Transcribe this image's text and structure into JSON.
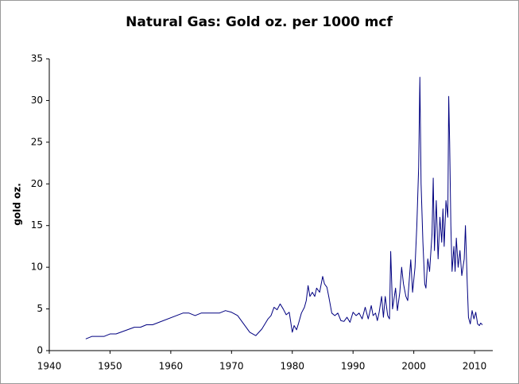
{
  "chart_data": {
    "type": "line",
    "title": "Natural Gas: Gold oz. per 1000 mcf",
    "ylabel": "gold oz.",
    "color": "#000080",
    "x": [
      1946,
      1947,
      1949,
      1950,
      1951,
      1954,
      1955,
      1956,
      1957,
      1962,
      1963,
      1964,
      1965,
      1968,
      1969,
      1970,
      1971,
      1972,
      1973,
      1974,
      1975,
      1976,
      1976.5,
      1977,
      1977.5,
      1978,
      1978.5,
      1979,
      1979.5,
      1980,
      1980.3,
      1980.7,
      1981,
      1981.5,
      1982,
      1982.3,
      1982.6,
      1982.9,
      1983.3,
      1983.7,
      1984,
      1984.5,
      1985,
      1985.3,
      1985.7,
      1986,
      1986.5,
      1987,
      1987.5,
      1988,
      1988.5,
      1989,
      1989.5,
      1990,
      1990.5,
      1991,
      1991.5,
      1992,
      1992.5,
      1993,
      1993.3,
      1993.7,
      1994,
      1994.3,
      1994.7,
      1995,
      1995.3,
      1995.7,
      1996,
      1996.2,
      1996.5,
      1997,
      1997.3,
      1997.7,
      1998,
      1998.3,
      1998.7,
      1999,
      1999.5,
      1999.8,
      2000.2,
      2000.5,
      2000.8,
      2001,
      2001.2,
      2001.5,
      2001.8,
      2002,
      2002.3,
      2002.6,
      2003,
      2003.2,
      2003.4,
      2003.7,
      2004,
      2004.3,
      2004.6,
      2004.8,
      2005,
      2005.3,
      2005.6,
      2005.75,
      2005.9,
      2006.1,
      2006.3,
      2006.6,
      2006.8,
      2007,
      2007.3,
      2007.6,
      2007.9,
      2008.3,
      2008.5,
      2008.8,
      2009,
      2009.3,
      2009.6,
      2009.9,
      2010.2,
      2010.5,
      2010.8,
      2011,
      2011.3
    ],
    "values": [
      1.4,
      1.7,
      1.7,
      2.0,
      2.0,
      2.8,
      2.8,
      3.1,
      3.1,
      4.5,
      4.5,
      4.2,
      4.5,
      4.5,
      4.8,
      4.6,
      4.2,
      3.2,
      2.2,
      1.8,
      2.6,
      3.8,
      4.2,
      5.2,
      4.9,
      5.6,
      5.0,
      4.3,
      4.6,
      2.2,
      3.0,
      2.5,
      3.2,
      4.5,
      5.2,
      6.0,
      7.8,
      6.5,
      7.0,
      6.5,
      7.5,
      7.0,
      8.9,
      8.0,
      7.6,
      6.5,
      4.5,
      4.2,
      4.5,
      3.6,
      3.5,
      4.0,
      3.4,
      4.6,
      4.2,
      4.5,
      3.8,
      5.2,
      3.8,
      5.4,
      4.2,
      4.5,
      3.6,
      4.6,
      6.5,
      4.0,
      6.5,
      4.2,
      3.8,
      11.9,
      5.0,
      7.5,
      4.8,
      7.0,
      10.0,
      8.0,
      6.5,
      6.0,
      10.9,
      7.0,
      10.0,
      15.0,
      22.0,
      32.8,
      20.0,
      13.0,
      8.0,
      7.5,
      11.0,
      9.5,
      14.0,
      20.7,
      12.0,
      18.0,
      11.0,
      16.0,
      13.0,
      17.0,
      12.5,
      18.0,
      16.0,
      30.5,
      25.0,
      15.0,
      9.5,
      12.5,
      9.5,
      13.5,
      10.0,
      12.0,
      9.0,
      11.0,
      15.0,
      8.0,
      4.0,
      3.2,
      4.8,
      3.8,
      4.6,
      3.2,
      3.0,
      3.3,
      3.1
    ],
    "xlim": [
      1940,
      2013
    ],
    "xticks": [
      1940,
      1950,
      1960,
      1970,
      1980,
      1990,
      2000,
      2010
    ],
    "ylim": [
      0,
      35
    ],
    "yticks": [
      0,
      5,
      10,
      15,
      20,
      25,
      30,
      35
    ],
    "grid": false
  }
}
